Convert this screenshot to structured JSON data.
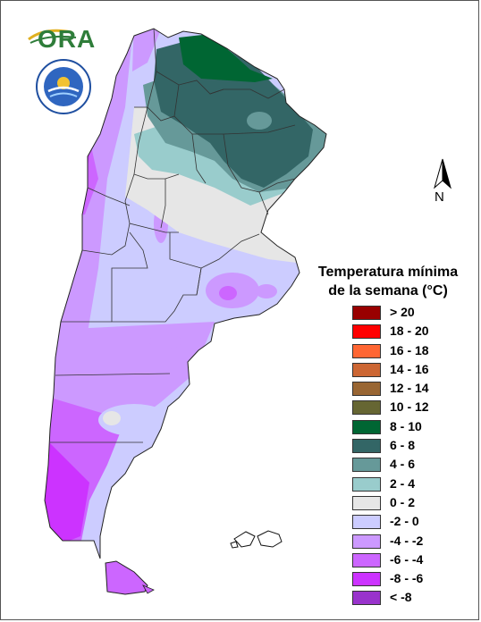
{
  "header": {
    "logo_text": "ORA"
  },
  "north_arrow": {
    "label": "N"
  },
  "legend": {
    "title_line1": "Temperatura mínima",
    "title_line2": "de la semana (°C)",
    "items": [
      {
        "label": "> 20",
        "color": "#990000"
      },
      {
        "label": "18 - 20",
        "color": "#ff0000"
      },
      {
        "label": "16 - 18",
        "color": "#ff6633"
      },
      {
        "label": "14 - 16",
        "color": "#cc6633"
      },
      {
        "label": "12 - 14",
        "color": "#996633"
      },
      {
        "label": "10 - 12",
        "color": "#666633"
      },
      {
        "label": "8 - 10",
        "color": "#006633"
      },
      {
        "label": "6 - 8",
        "color": "#336666"
      },
      {
        "label": "4 - 6",
        "color": "#669999"
      },
      {
        "label": "2 - 4",
        "color": "#99cccc"
      },
      {
        "label": "0 - 2",
        "color": "#e6e6e6"
      },
      {
        "label": "-2 - 0",
        "color": "#ccccff"
      },
      {
        "label": "-4 - -2",
        "color": "#cc99ff"
      },
      {
        "label": "-6 - -4",
        "color": "#cc66ff"
      },
      {
        "label": "-8 - -6",
        "color": "#cc33ff"
      },
      {
        "label": "< -8",
        "color": "#9933cc"
      }
    ]
  },
  "colors": {
    "province_border": "#333333",
    "land_outline": "#222222"
  }
}
